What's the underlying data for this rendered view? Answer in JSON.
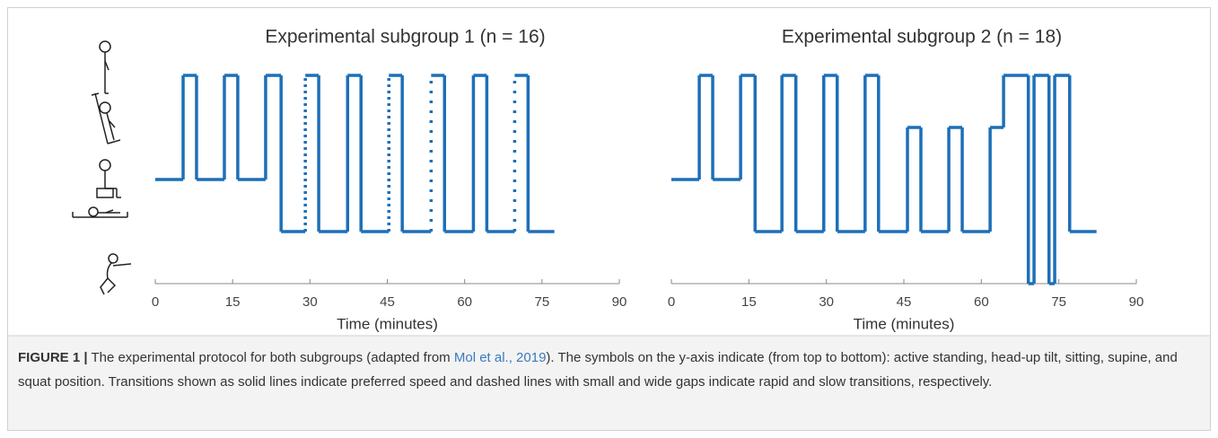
{
  "chart_data": [
    {
      "type": "step-line",
      "title": "Experimental subgroup 1 (n = 16)",
      "x_label": "Time (minutes)",
      "xlim": [
        0,
        90
      ],
      "xticks": [
        0,
        15,
        30,
        45,
        60,
        75,
        90
      ],
      "ylim": [
        0,
        4
      ],
      "color": "#1d6fb8",
      "start": {
        "x": 0,
        "y": 2
      },
      "steps": {
        "x": [
          5.4,
          8.0,
          13.4,
          16.0,
          21.4,
          24.4,
          29.1,
          31.7,
          37.3,
          39.9,
          45.3,
          47.9,
          53.5,
          56.1,
          61.7,
          64.3,
          69.7,
          72.3
        ],
        "y": [
          4,
          2,
          4,
          2,
          4,
          1,
          4,
          1,
          4,
          1,
          4,
          1,
          4,
          1,
          4,
          1,
          4,
          1
        ],
        "transition": [
          "solid",
          "solid",
          "solid",
          "solid",
          "solid",
          "solid",
          "rapid",
          "solid",
          "solid",
          "solid",
          "rapid",
          "solid",
          "slow",
          "solid",
          "solid",
          "solid",
          "slow",
          "solid"
        ]
      },
      "end_x": 77.4
    },
    {
      "type": "step-line",
      "title": "Experimental subgroup 2 (n = 18)",
      "x_label": "Time (minutes)",
      "xlim": [
        0,
        90
      ],
      "xticks": [
        0,
        15,
        30,
        45,
        60,
        75,
        90
      ],
      "ylim": [
        0,
        4
      ],
      "color": "#1d6fb8",
      "start": {
        "x": 0,
        "y": 2
      },
      "steps": {
        "x": [
          5.4,
          8.0,
          13.4,
          16.2,
          21.4,
          24.1,
          29.5,
          32.1,
          37.5,
          40.1,
          45.7,
          48.3,
          53.7,
          56.3,
          61.7,
          64.3,
          69.1,
          70.2,
          73.1,
          74.2,
          77.1
        ],
        "y": [
          4,
          2,
          4,
          1,
          4,
          1,
          4,
          1,
          4,
          1,
          3,
          1,
          3,
          1,
          3,
          4,
          0,
          4,
          0,
          4,
          1
        ],
        "transition": [
          "solid",
          "solid",
          "solid",
          "solid",
          "solid",
          "solid",
          "solid",
          "solid",
          "solid",
          "solid",
          "solid",
          "solid",
          "solid",
          "solid",
          "solid",
          "solid",
          "solid",
          "solid",
          "solid",
          "solid",
          "solid"
        ]
      },
      "end_x": 82.3
    }
  ],
  "caption": {
    "label": "FIGURE 1 |",
    "text_before": "The experimental protocol for both subgroups (adapted from",
    "link": "Mol et al., 2019",
    "text_after": "). The symbols on the y-axis indicate (from top to bottom): active standing, head-up tilt, sitting, supine, and squat position. Transitions shown as solid lines indicate preferred speed and dashed lines with small and wide gaps indicate rapid and slow transitions, respectively."
  }
}
